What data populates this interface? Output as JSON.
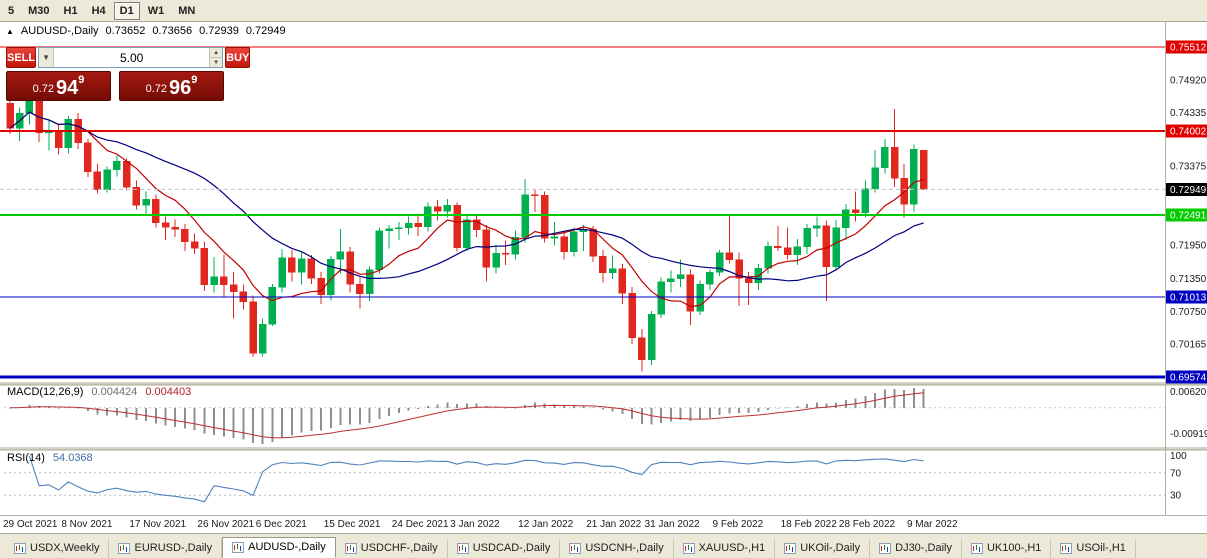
{
  "icons": {
    "marker": "▲",
    "dropdown": "▼",
    "spin_up": "▲",
    "spin_down": "▼"
  },
  "toolbar": {
    "timeframes": [
      {
        "label": "5",
        "active": false
      },
      {
        "label": "M30",
        "active": false
      },
      {
        "label": "H1",
        "active": false
      },
      {
        "label": "H4",
        "active": false
      },
      {
        "label": "D1",
        "active": true
      },
      {
        "label": "W1",
        "active": false
      },
      {
        "label": "MN",
        "active": false
      }
    ]
  },
  "quote": {
    "symbol": "AUDUSD-,Daily",
    "open": "0.73652",
    "high": "0.73656",
    "low": "0.72939",
    "close": "0.72949"
  },
  "trade_panel": {
    "sell_label": "SELL",
    "buy_label": "BUY",
    "volume": "5.00",
    "bid": {
      "prefix": "0.72",
      "big": "94",
      "sup": "9"
    },
    "ask": {
      "prefix": "0.72",
      "big": "96",
      "sup": "9"
    }
  },
  "colors": {
    "up": "#00B050",
    "down": "#E0281E",
    "ma_fast": "#C00000",
    "ma_slow": "#000080",
    "macd_hist": "#8f8f8f",
    "macd_signal": "#C03030",
    "rsi_line": "#4F81BD",
    "axis_text": "#1a1a1a"
  },
  "chart_data": {
    "type": "candlestick",
    "title": "AUDUSD-,Daily",
    "y_range": [
      0.69574,
      0.75512
    ],
    "y_ticks": [
      "0.74920",
      "0.74335",
      "0.73375",
      "0.71950",
      "0.71350",
      "0.70750",
      "0.70165"
    ],
    "hlines": [
      {
        "price": 0.75512,
        "tag": "0.75512",
        "color": "#E00000",
        "w": 1.4
      },
      {
        "price": 0.74002,
        "tag": "0.74002",
        "color": "#E00000",
        "w": 2
      },
      {
        "price": 0.72491,
        "tag": "0.72491",
        "color": "#00CC00",
        "w": 2
      },
      {
        "price": 0.71013,
        "tag": "0.71013",
        "color": "#0000C0",
        "w": 1.4
      },
      {
        "price": 0.69574,
        "tag": "0.69574",
        "color": "#0000C0",
        "w": 3
      }
    ],
    "current_price": {
      "price": 0.72949,
      "tag": "0.72949",
      "bg": "#000000"
    },
    "ma": [
      {
        "period": 8,
        "color_key": "ma_fast"
      },
      {
        "period": 21,
        "color_key": "ma_slow"
      }
    ],
    "x_labels": [
      {
        "label": "29 Oct 2021",
        "i": 0
      },
      {
        "label": "8 Nov 2021",
        "i": 6
      },
      {
        "label": "17 Nov 2021",
        "i": 13
      },
      {
        "label": "26 Nov 2021",
        "i": 20
      },
      {
        "label": "6 Dec 2021",
        "i": 26
      },
      {
        "label": "15 Dec 2021",
        "i": 33
      },
      {
        "label": "24 Dec 2021",
        "i": 40
      },
      {
        "label": "3 Jan 2022",
        "i": 46
      },
      {
        "label": "12 Jan 2022",
        "i": 53
      },
      {
        "label": "21 Jan 2022",
        "i": 60
      },
      {
        "label": "31 Jan 2022",
        "i": 66
      },
      {
        "label": "9 Feb 2022",
        "i": 73
      },
      {
        "label": "18 Feb 2022",
        "i": 80
      },
      {
        "label": "28 Feb 2022",
        "i": 86
      },
      {
        "label": "9 Mar 2022",
        "i": 93
      }
    ],
    "ohlc": [
      [
        0.745,
        0.747,
        0.7395,
        0.7405
      ],
      [
        0.7405,
        0.7442,
        0.7382,
        0.7432
      ],
      [
        0.7432,
        0.7472,
        0.7412,
        0.7465
      ],
      [
        0.7465,
        0.7473,
        0.738,
        0.7397
      ],
      [
        0.7397,
        0.742,
        0.7365,
        0.7401
      ],
      [
        0.7401,
        0.7412,
        0.7358,
        0.737
      ],
      [
        0.737,
        0.7427,
        0.736,
        0.7421
      ],
      [
        0.7421,
        0.7432,
        0.7368,
        0.7379
      ],
      [
        0.7379,
        0.7386,
        0.7317,
        0.7327
      ],
      [
        0.7327,
        0.7341,
        0.7288,
        0.7294
      ],
      [
        0.7294,
        0.7336,
        0.7289,
        0.733
      ],
      [
        0.733,
        0.7356,
        0.7318,
        0.7346
      ],
      [
        0.7346,
        0.7351,
        0.7293,
        0.7299
      ],
      [
        0.7299,
        0.7311,
        0.7259,
        0.7266
      ],
      [
        0.7266,
        0.7291,
        0.7251,
        0.7277
      ],
      [
        0.7277,
        0.7286,
        0.7226,
        0.7235
      ],
      [
        0.7235,
        0.7246,
        0.7204,
        0.7227
      ],
      [
        0.7227,
        0.7241,
        0.7209,
        0.7223
      ],
      [
        0.7223,
        0.7233,
        0.7184,
        0.7201
      ],
      [
        0.7201,
        0.7216,
        0.7179,
        0.7189
      ],
      [
        0.7189,
        0.7201,
        0.7112,
        0.7123
      ],
      [
        0.7123,
        0.7173,
        0.7109,
        0.7138
      ],
      [
        0.7138,
        0.7178,
        0.7101,
        0.7123
      ],
      [
        0.7123,
        0.7146,
        0.7063,
        0.7111
      ],
      [
        0.7111,
        0.7124,
        0.7079,
        0.7093
      ],
      [
        0.7093,
        0.7104,
        0.6993,
        0.7
      ],
      [
        0.7,
        0.7063,
        0.6994,
        0.7052
      ],
      [
        0.7052,
        0.7125,
        0.7049,
        0.7119
      ],
      [
        0.7119,
        0.7188,
        0.7109,
        0.7172
      ],
      [
        0.7172,
        0.7186,
        0.7129,
        0.7146
      ],
      [
        0.7146,
        0.7181,
        0.7124,
        0.717
      ],
      [
        0.717,
        0.7177,
        0.7125,
        0.7135
      ],
      [
        0.7135,
        0.7146,
        0.7089,
        0.7105
      ],
      [
        0.7105,
        0.7175,
        0.7095,
        0.7169
      ],
      [
        0.7169,
        0.7224,
        0.7144,
        0.7183
      ],
      [
        0.7183,
        0.7191,
        0.7109,
        0.7124
      ],
      [
        0.7124,
        0.7136,
        0.7081,
        0.7107
      ],
      [
        0.7107,
        0.7156,
        0.7094,
        0.715
      ],
      [
        0.715,
        0.7226,
        0.7144,
        0.7221
      ],
      [
        0.7221,
        0.7231,
        0.7189,
        0.7224
      ],
      [
        0.7224,
        0.7236,
        0.7204,
        0.7226
      ],
      [
        0.7226,
        0.7246,
        0.7214,
        0.7234
      ],
      [
        0.7234,
        0.7249,
        0.7211,
        0.7228
      ],
      [
        0.7228,
        0.7271,
        0.7219,
        0.7264
      ],
      [
        0.7264,
        0.7276,
        0.7239,
        0.7256
      ],
      [
        0.7256,
        0.7278,
        0.7244,
        0.7266
      ],
      [
        0.7266,
        0.7271,
        0.7183,
        0.719
      ],
      [
        0.719,
        0.7249,
        0.7184,
        0.724
      ],
      [
        0.724,
        0.7251,
        0.7209,
        0.7222
      ],
      [
        0.7222,
        0.7231,
        0.7129,
        0.7155
      ],
      [
        0.7155,
        0.7195,
        0.7144,
        0.718
      ],
      [
        0.718,
        0.7203,
        0.7159,
        0.7178
      ],
      [
        0.7178,
        0.7221,
        0.7169,
        0.7209
      ],
      [
        0.7209,
        0.7314,
        0.7199,
        0.7285
      ],
      [
        0.7285,
        0.7294,
        0.7254,
        0.7284
      ],
      [
        0.7284,
        0.7291,
        0.7199,
        0.7207
      ],
      [
        0.7207,
        0.7236,
        0.7194,
        0.721
      ],
      [
        0.721,
        0.7221,
        0.7169,
        0.7183
      ],
      [
        0.7183,
        0.7226,
        0.7174,
        0.7219
      ],
      [
        0.7219,
        0.7231,
        0.7184,
        0.7223
      ],
      [
        0.7223,
        0.7229,
        0.7164,
        0.7175
      ],
      [
        0.7175,
        0.7186,
        0.7127,
        0.7145
      ],
      [
        0.7145,
        0.7176,
        0.7134,
        0.7152
      ],
      [
        0.7152,
        0.7161,
        0.7089,
        0.7108
      ],
      [
        0.7108,
        0.7119,
        0.7017,
        0.7028
      ],
      [
        0.7028,
        0.7044,
        0.6967,
        0.6988
      ],
      [
        0.6988,
        0.7076,
        0.6979,
        0.707
      ],
      [
        0.707,
        0.7136,
        0.7064,
        0.7129
      ],
      [
        0.7129,
        0.7149,
        0.7109,
        0.7134
      ],
      [
        0.7134,
        0.7169,
        0.7119,
        0.7141
      ],
      [
        0.7141,
        0.7151,
        0.7051,
        0.7076
      ],
      [
        0.7076,
        0.7131,
        0.7069,
        0.7124
      ],
      [
        0.7124,
        0.7151,
        0.7114,
        0.7146
      ],
      [
        0.7146,
        0.7186,
        0.7139,
        0.7181
      ],
      [
        0.7181,
        0.7248,
        0.7162,
        0.7168
      ],
      [
        0.7168,
        0.7181,
        0.7085,
        0.7135
      ],
      [
        0.7135,
        0.7146,
        0.7087,
        0.7127
      ],
      [
        0.7127,
        0.7161,
        0.7114,
        0.7153
      ],
      [
        0.7153,
        0.7201,
        0.7144,
        0.7193
      ],
      [
        0.7193,
        0.7229,
        0.7184,
        0.719
      ],
      [
        0.719,
        0.7226,
        0.7169,
        0.7177
      ],
      [
        0.7177,
        0.7206,
        0.7159,
        0.7192
      ],
      [
        0.7192,
        0.7233,
        0.7179,
        0.7225
      ],
      [
        0.7225,
        0.7246,
        0.7209,
        0.723
      ],
      [
        0.723,
        0.7239,
        0.7094,
        0.7156
      ],
      [
        0.7156,
        0.724,
        0.7149,
        0.7226
      ],
      [
        0.7226,
        0.7269,
        0.7204,
        0.7258
      ],
      [
        0.7258,
        0.7291,
        0.7237,
        0.7253
      ],
      [
        0.7253,
        0.7311,
        0.7244,
        0.7296
      ],
      [
        0.7296,
        0.7366,
        0.7289,
        0.7334
      ],
      [
        0.7334,
        0.7386,
        0.7324,
        0.7371
      ],
      [
        0.7371,
        0.744,
        0.7299,
        0.7315
      ],
      [
        0.7315,
        0.7341,
        0.7244,
        0.7268
      ],
      [
        0.7268,
        0.7376,
        0.7254,
        0.7367
      ],
      [
        0.7365,
        0.7366,
        0.7294,
        0.7295
      ]
    ],
    "indicators": {
      "macd": {
        "label": "MACD(12,26,9)",
        "params": [
          12,
          26,
          9
        ],
        "value_main": "0.004424",
        "value_signal": "0.004403",
        "axis_labels": [
          "0.00620",
          "-0.00919"
        ]
      },
      "rsi": {
        "label": "RSI(14)",
        "period": 14,
        "value": "54.0368",
        "axis_labels": [
          "100",
          "70",
          "30"
        ],
        "levels": [
          70,
          30
        ]
      }
    }
  },
  "tabs": [
    {
      "label": "USDX,Weekly",
      "active": false
    },
    {
      "label": "EURUSD-,Daily",
      "active": false
    },
    {
      "label": "AUDUSD-,Daily",
      "active": true
    },
    {
      "label": "USDCHF-,Daily",
      "active": false
    },
    {
      "label": "USDCAD-,Daily",
      "active": false
    },
    {
      "label": "USDCNH-,Daily",
      "active": false
    },
    {
      "label": "XAUUSD-,H1",
      "active": false
    },
    {
      "label": "UKOil-,Daily",
      "active": false
    },
    {
      "label": "DJ30-,Daily",
      "active": false
    },
    {
      "label": "UK100-,H1",
      "active": false
    },
    {
      "label": "USOil-,H1",
      "active": false
    }
  ]
}
